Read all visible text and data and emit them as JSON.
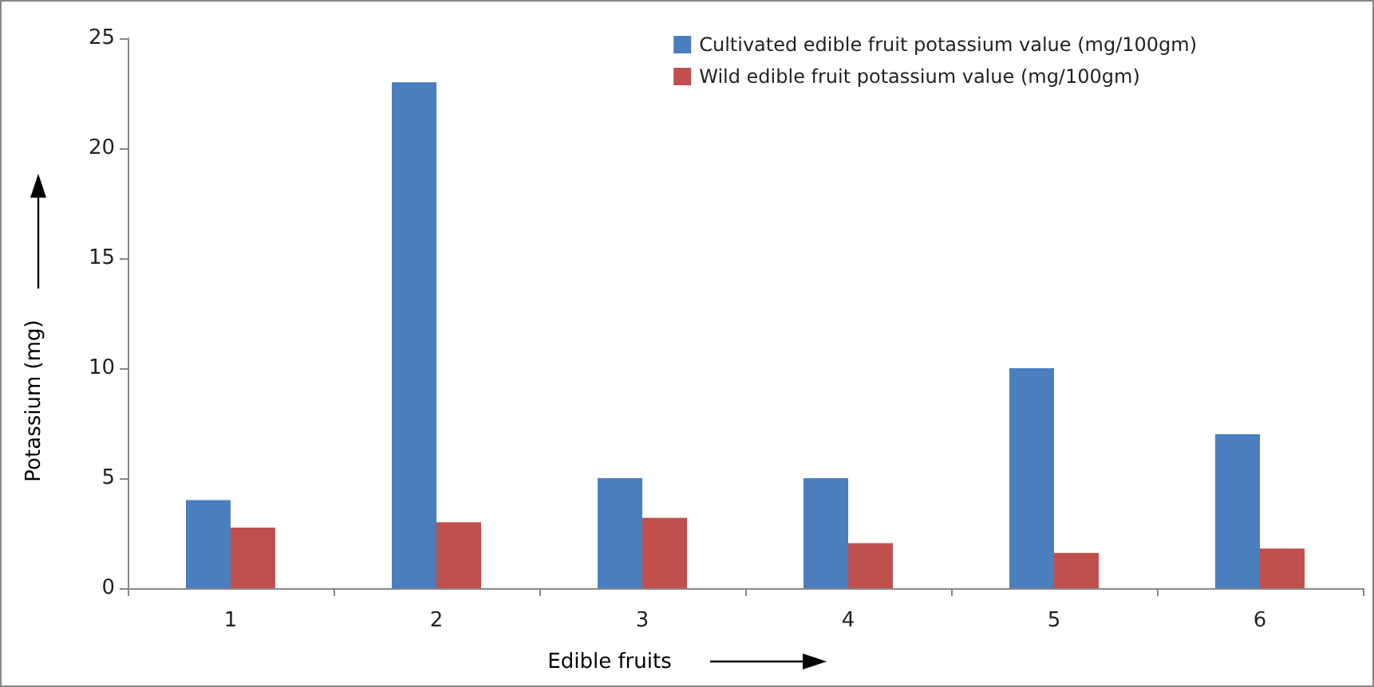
{
  "chart_data": {
    "type": "bar",
    "xlabel": "Edible fruits",
    "ylabel": "Potassium (mg)",
    "categories": [
      "1",
      "2",
      "3",
      "4",
      "5",
      "6"
    ],
    "series": [
      {
        "name": "Cultivated edible fruit potassium value (mg/100gm)",
        "color": "#4a7ebf",
        "values": [
          4,
          23,
          5,
          5,
          10,
          7
        ]
      },
      {
        "name": "Wild edible fruit potassium value (mg/100gm)",
        "color": "#c0504d",
        "values": [
          2.75,
          3,
          3.2,
          2.05,
          1.6,
          1.8
        ]
      }
    ],
    "ylim": [
      0,
      25
    ],
    "yticks": [
      0,
      5,
      10,
      15,
      20,
      25
    ],
    "grid": false,
    "legend": "top right"
  }
}
